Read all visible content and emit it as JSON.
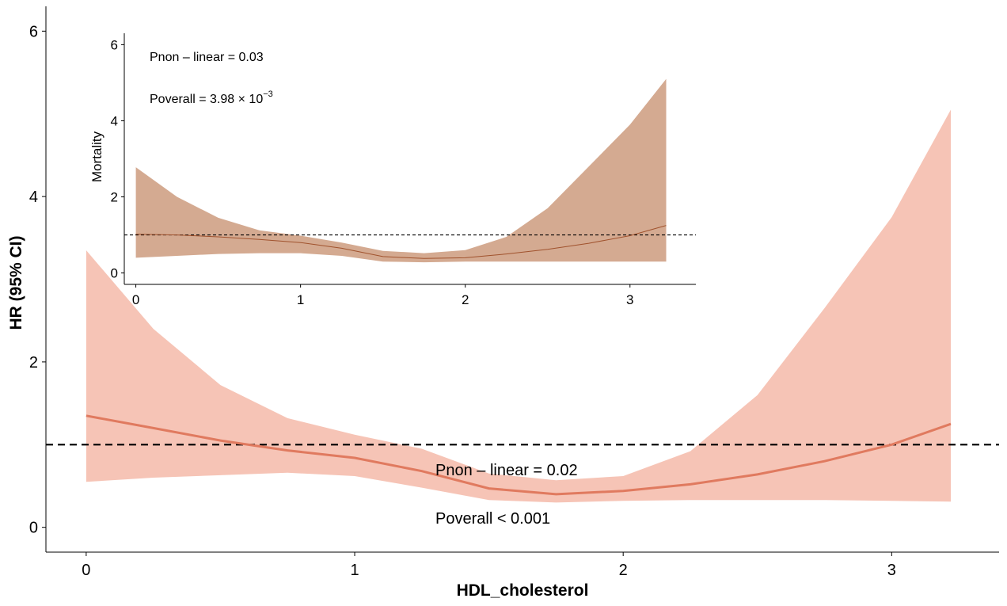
{
  "chart_data": [
    {
      "type": "line",
      "panel": "main",
      "xlabel": "HDL_cholesterol",
      "ylabel": "HR (95% CI)",
      "xlim": [
        -0.15,
        3.4
      ],
      "ylim": [
        -0.3,
        6.3
      ],
      "xticks": [
        0,
        1,
        2,
        3
      ],
      "yticks": [
        0,
        2,
        4,
        6
      ],
      "reference_line": 1,
      "colors": {
        "band": "#f6c4b6",
        "line": "#e07a5f",
        "reference": "#000000"
      },
      "series": [
        {
          "name": "HR",
          "x": [
            0,
            0.25,
            0.5,
            0.75,
            1.0,
            1.25,
            1.5,
            1.75,
            2.0,
            2.25,
            2.5,
            2.75,
            3.0,
            3.22
          ],
          "y": [
            1.35,
            1.2,
            1.05,
            0.93,
            0.84,
            0.68,
            0.47,
            0.4,
            0.44,
            0.52,
            0.64,
            0.8,
            1.0,
            1.25
          ],
          "lower": [
            0.55,
            0.6,
            0.63,
            0.66,
            0.62,
            0.48,
            0.33,
            0.3,
            0.32,
            0.33,
            0.33,
            0.33,
            0.32,
            0.31
          ],
          "upper": [
            3.35,
            2.4,
            1.72,
            1.32,
            1.12,
            0.95,
            0.65,
            0.57,
            0.62,
            0.92,
            1.6,
            2.65,
            3.75,
            5.05
          ]
        }
      ],
      "annotations": {
        "p_nonlinear": "Pnon – linear = 0.02",
        "p_overall": "Poverall < 0.001"
      }
    },
    {
      "type": "line",
      "panel": "inset",
      "xlabel": "",
      "ylabel": "Mortality",
      "xlim": [
        -0.07,
        3.4
      ],
      "ylim": [
        -0.3,
        6.3
      ],
      "xticks": [
        0,
        1,
        2,
        3
      ],
      "yticks": [
        0,
        2,
        4,
        6
      ],
      "reference_line": 1,
      "colors": {
        "band": "#d4aa91",
        "line": "#a0522d",
        "reference": "#000000"
      },
      "series": [
        {
          "name": "Mortality",
          "x": [
            0,
            0.25,
            0.5,
            0.75,
            1.0,
            1.25,
            1.5,
            1.75,
            2.0,
            2.25,
            2.5,
            2.75,
            3.0,
            3.22
          ],
          "y": [
            1.02,
            1.0,
            0.95,
            0.88,
            0.8,
            0.65,
            0.43,
            0.38,
            0.4,
            0.5,
            0.62,
            0.78,
            0.98,
            1.25
          ],
          "lower": [
            0.4,
            0.45,
            0.5,
            0.52,
            0.52,
            0.45,
            0.3,
            0.28,
            0.3,
            0.3,
            0.3,
            0.3,
            0.3,
            0.3
          ],
          "upper": [
            2.78,
            2.0,
            1.45,
            1.12,
            0.98,
            0.8,
            0.58,
            0.52,
            0.6,
            0.95,
            1.7,
            2.8,
            3.9,
            5.1
          ]
        }
      ],
      "annotations": {
        "p_nonlinear": "Pnon – linear = 0.03",
        "p_overall_base": "Poverall = 3.98 × 10",
        "p_overall_exponent": "−3"
      }
    }
  ]
}
